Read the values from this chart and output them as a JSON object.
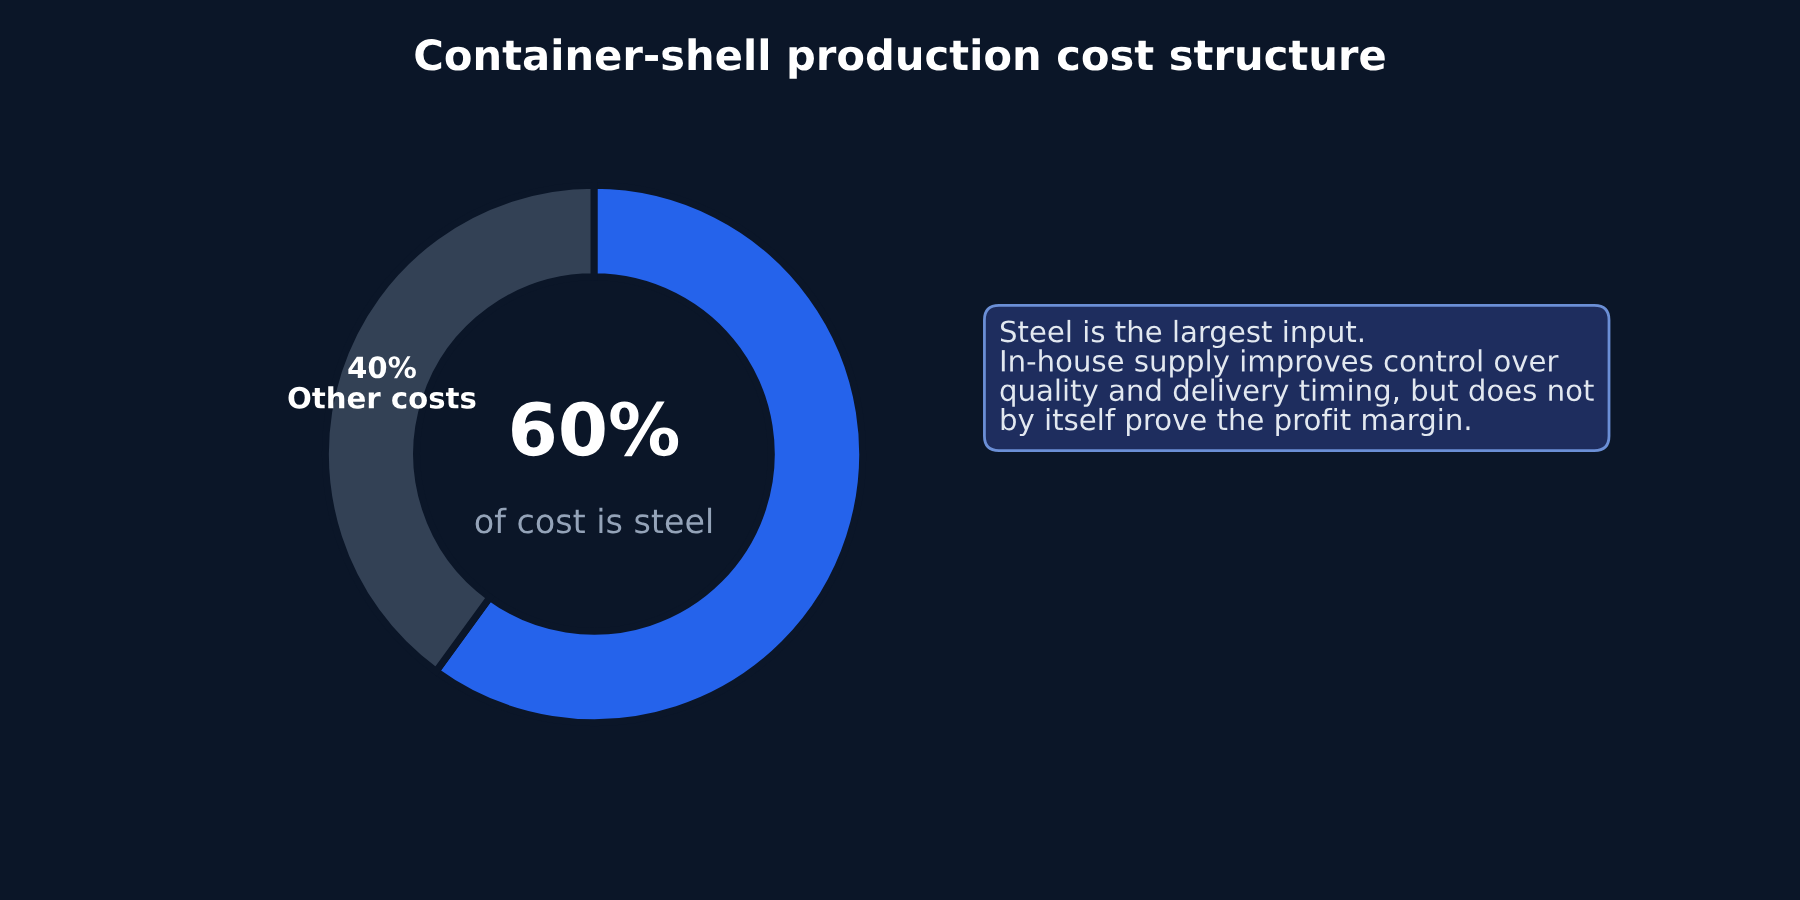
{
  "chart_data": {
    "type": "donut",
    "title": "Container-shell production cost structure",
    "categories": [
      null,
      "Other costs"
    ],
    "values": [
      60,
      40
    ],
    "colors": [
      "#2563eb",
      "#334155"
    ],
    "value_labels": [
      null,
      "40%"
    ],
    "annotations": [
      "60%",
      "of cost is steel",
      "Steel is the largest input.\nIn-house supply improves control over\nquality and delivery timing, but does not\nby itself prove the profit margin."
    ],
    "legend": false
  }
}
